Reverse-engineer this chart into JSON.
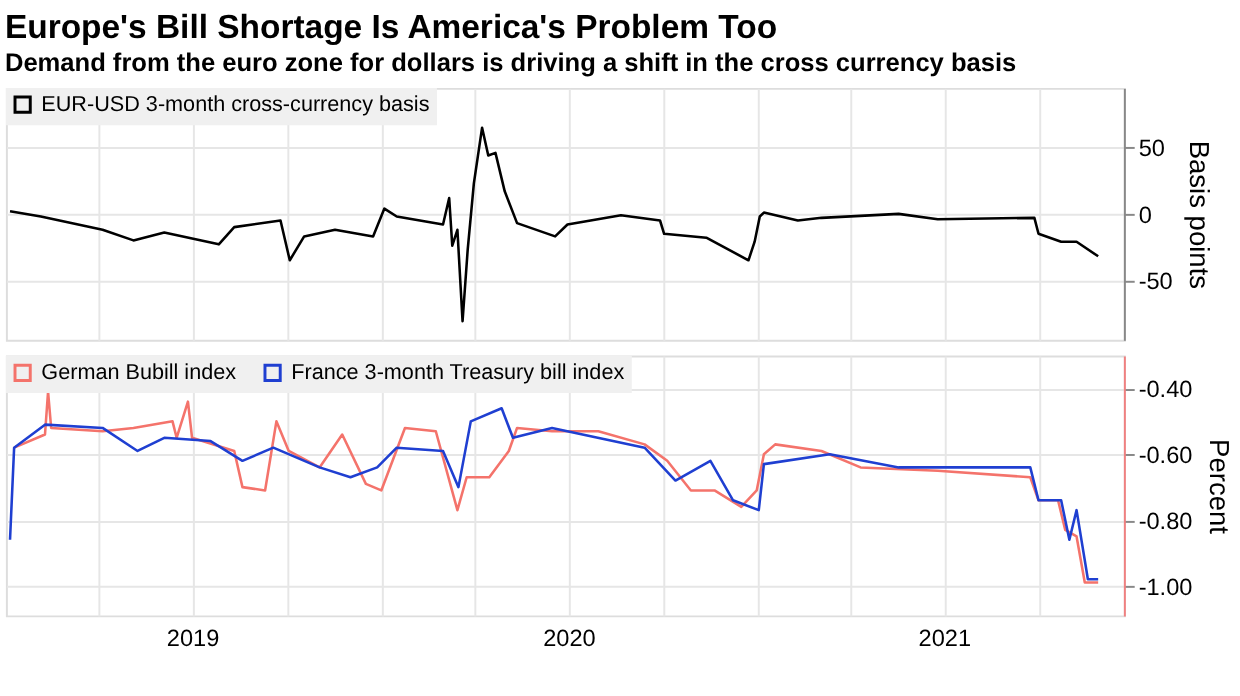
{
  "chart_data": [
    {
      "type": "line",
      "title": "Europe's Bill Shortage Is America's Problem Too",
      "subtitle": "Demand from the euro zone for dollars is driving a shift in the cross currency basis",
      "ylabel": "Basis points",
      "legend": "top left",
      "grid": true,
      "tick_labels": "y",
      "xlim": [
        "2019-01-01",
        "2021-12-23"
      ],
      "ylim": [
        -95,
        95
      ],
      "yticks": [
        -50,
        0,
        50
      ],
      "xticks": [
        {
          "value": "2019-04-01",
          "label": null
        },
        {
          "value": "2019-07-01",
          "label": null
        },
        {
          "value": "2019-10-01",
          "label": null
        },
        {
          "value": "2020-01-01",
          "label": null
        },
        {
          "value": "2020-04-01",
          "label": null
        },
        {
          "value": "2020-07-01",
          "label": null
        },
        {
          "value": "2020-10-01",
          "label": null
        },
        {
          "value": "2021-01-01",
          "label": null
        },
        {
          "value": "2021-04-01",
          "label": null
        },
        {
          "value": "2021-07-01",
          "label": null
        },
        {
          "value": "2021-10-01",
          "label": null
        }
      ],
      "series": [
        {
          "name": "EUR-USD 3-month cross-currency basis",
          "color": "#000000",
          "x": [
            "2019-01-05",
            "2019-02-04",
            "2019-04-05",
            "2019-05-05",
            "2019-06-04",
            "2019-07-27",
            "2019-08-11",
            "2019-09-25",
            "2019-10-04",
            "2019-10-18",
            "2019-11-17",
            "2019-12-24",
            "2020-01-04",
            "2020-01-16",
            "2020-03-01",
            "2020-03-07",
            "2020-03-10",
            "2020-03-15",
            "2020-03-20",
            "2020-03-25",
            "2020-03-31",
            "2020-04-08",
            "2020-04-14",
            "2020-04-21",
            "2020-04-30",
            "2020-05-12",
            "2020-06-18",
            "2020-06-30",
            "2020-08-21",
            "2020-09-28",
            "2020-10-02",
            "2020-11-12",
            "2020-12-23",
            "2020-12-29",
            "2021-01-03",
            "2021-01-07",
            "2021-02-09",
            "2021-03-04",
            "2021-05-18",
            "2021-06-25",
            "2021-09-27",
            "2021-10-01",
            "2021-10-23",
            "2021-11-07",
            "2021-11-28"
          ],
          "values": [
            2,
            -2,
            -12,
            -20,
            -14,
            -23,
            -10,
            -5,
            -35,
            -17,
            -12,
            -17,
            4,
            -2,
            -8,
            12,
            -24,
            -12,
            -81,
            -27,
            23,
            65,
            44,
            46,
            17,
            -7,
            -17,
            -8,
            -1,
            -5,
            -15,
            -18,
            -35,
            -21,
            -2,
            1,
            -5,
            -3,
            0,
            -4,
            -3,
            -15,
            -21,
            -21,
            -32
          ]
        }
      ]
    },
    {
      "type": "line",
      "ylabel": "Percent",
      "legend": "top left",
      "grid": true,
      "xlim": [
        "2019-01-01",
        "2021-12-23"
      ],
      "ylim": [
        -1.09,
        -0.3
      ],
      "yticks": [
        {
          "value": -0.4,
          "label": "-0.40"
        },
        {
          "value": -0.6,
          "label": "-0.60"
        },
        {
          "value": -0.8,
          "label": "-0.80"
        },
        {
          "value": -1.0,
          "label": "-1.00"
        }
      ],
      "xticks": [
        {
          "value": "2019-04-01",
          "label": null
        },
        {
          "value": "2019-07-01",
          "label": "2019"
        },
        {
          "value": "2019-10-01",
          "label": null
        },
        {
          "value": "2020-01-01",
          "label": null
        },
        {
          "value": "2020-04-01",
          "label": null
        },
        {
          "value": "2020-07-01",
          "label": "2020"
        },
        {
          "value": "2020-10-01",
          "label": null
        },
        {
          "value": "2021-01-01",
          "label": null
        },
        {
          "value": "2021-04-01",
          "label": null
        },
        {
          "value": "2021-07-01",
          "label": "2021"
        },
        {
          "value": "2021-10-01",
          "label": null
        }
      ],
      "series": [
        {
          "name": "German Bubill index",
          "color": "#f4736b",
          "x": [
            "2019-01-09",
            "2019-02-08",
            "2019-02-11",
            "2019-02-14",
            "2019-04-05",
            "2019-05-05",
            "2019-06-12",
            "2019-06-16",
            "2019-06-27",
            "2019-07-01",
            "2019-08-11",
            "2019-08-19",
            "2019-09-10",
            "2019-09-21",
            "2019-10-03",
            "2019-11-02",
            "2019-11-24",
            "2019-12-17",
            "2020-01-01",
            "2020-01-24",
            "2020-02-23",
            "2020-03-15",
            "2020-03-24",
            "2020-04-15",
            "2020-05-04",
            "2020-05-12",
            "2020-06-15",
            "2020-07-30",
            "2020-09-13",
            "2020-10-05",
            "2020-10-28",
            "2020-11-20",
            "2020-12-16",
            "2020-12-31",
            "2021-01-07",
            "2021-01-18",
            "2021-03-04",
            "2021-04-11",
            "2021-06-25",
            "2021-09-23",
            "2021-10-01",
            "2021-10-20",
            "2021-10-27",
            "2021-11-07",
            "2021-11-15",
            "2021-11-28"
          ],
          "values": [
            -0.58,
            -0.54,
            -0.41,
            -0.52,
            -0.53,
            -0.52,
            -0.5,
            -0.55,
            -0.44,
            -0.55,
            -0.59,
            -0.7,
            -0.71,
            -0.5,
            -0.59,
            -0.64,
            -0.54,
            -0.69,
            -0.71,
            -0.52,
            -0.53,
            -0.77,
            -0.67,
            -0.67,
            -0.59,
            -0.52,
            -0.53,
            -0.53,
            -0.57,
            -0.62,
            -0.71,
            -0.71,
            -0.76,
            -0.71,
            -0.6,
            -0.57,
            -0.59,
            -0.64,
            -0.65,
            -0.67,
            -0.74,
            -0.74,
            -0.83,
            -0.85,
            -0.99,
            -0.99
          ]
        },
        {
          "name": "France 3-month Treasury bill index",
          "color": "#1f3fd1",
          "x": [
            "2019-01-05",
            "2019-01-09",
            "2019-02-08",
            "2019-04-05",
            "2019-05-09",
            "2019-06-04",
            "2019-07-19",
            "2019-08-19",
            "2019-09-18",
            "2019-11-02",
            "2019-12-02",
            "2019-12-28",
            "2020-01-16",
            "2020-03-01",
            "2020-03-16",
            "2020-03-28",
            "2020-04-27",
            "2020-05-08",
            "2020-06-15",
            "2020-09-13",
            "2020-10-13",
            "2020-11-16",
            "2020-12-08",
            "2021-01-02",
            "2021-01-07",
            "2021-03-12",
            "2021-05-18",
            "2021-09-23",
            "2021-10-01",
            "2021-10-23",
            "2021-10-31",
            "2021-11-07",
            "2021-11-18",
            "2021-11-28"
          ],
          "values": [
            -0.86,
            -0.58,
            -0.51,
            -0.52,
            -0.59,
            -0.55,
            -0.56,
            -0.62,
            -0.58,
            -0.64,
            -0.67,
            -0.64,
            -0.58,
            -0.59,
            -0.7,
            -0.5,
            -0.46,
            -0.55,
            -0.52,
            -0.58,
            -0.68,
            -0.62,
            -0.74,
            -0.77,
            -0.63,
            -0.6,
            -0.64,
            -0.64,
            -0.74,
            -0.74,
            -0.86,
            -0.77,
            -0.98,
            -0.98
          ]
        }
      ]
    }
  ]
}
